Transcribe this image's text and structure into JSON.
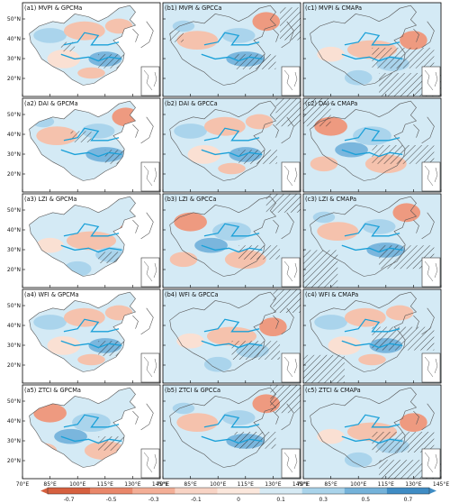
{
  "panels": [
    {
      "row": 0,
      "col": 0,
      "title": "(a1) MVPI & GPCMa",
      "domain": "china",
      "pattern": 1,
      "hatch": [
        [
          0.55,
          0.55,
          0.3,
          0.15
        ],
        [
          0.28,
          0.42,
          0.1,
          0.1
        ]
      ]
    },
    {
      "row": 0,
      "col": 1,
      "title": "(b1) MVPI & GPCCa",
      "domain": "full",
      "pattern": 2,
      "hatch": [
        [
          0.52,
          0.55,
          0.3,
          0.16
        ],
        [
          0.85,
          0.05,
          0.15,
          0.35
        ],
        [
          0.05,
          0.3,
          0.1,
          0.12
        ]
      ]
    },
    {
      "row": 0,
      "col": 2,
      "title": "(c1) MVPI & CMAPa",
      "domain": "full",
      "pattern": 3,
      "hatch": [
        [
          0.5,
          0.48,
          0.45,
          0.22
        ],
        [
          0.55,
          0.75,
          0.45,
          0.25
        ]
      ]
    },
    {
      "row": 1,
      "col": 0,
      "title": "(a2) DAI & GPCMa",
      "domain": "china",
      "pattern": 2,
      "hatch": [
        [
          0.6,
          0.55,
          0.25,
          0.15
        ],
        [
          0.35,
          0.35,
          0.15,
          0.12
        ]
      ]
    },
    {
      "row": 1,
      "col": 1,
      "title": "(b2) DAI & GPCCa",
      "domain": "full",
      "pattern": 1,
      "hatch": [
        [
          0.55,
          0.55,
          0.28,
          0.15
        ],
        [
          0.82,
          0.0,
          0.18,
          0.3
        ]
      ]
    },
    {
      "row": 1,
      "col": 2,
      "title": "(c2) DAI & CMAPa",
      "domain": "full",
      "pattern": 4,
      "hatch": [
        [
          0.5,
          0.5,
          0.45,
          0.2
        ],
        [
          0.0,
          0.0,
          0.2,
          0.3
        ]
      ]
    },
    {
      "row": 2,
      "col": 0,
      "title": "(a3) LZI & GPCMa",
      "domain": "china",
      "pattern": 3,
      "hatch": [
        [
          0.55,
          0.62,
          0.2,
          0.12
        ]
      ]
    },
    {
      "row": 2,
      "col": 1,
      "title": "(b3) LZI & GPCCa",
      "domain": "full",
      "pattern": 4,
      "hatch": [
        [
          0.55,
          0.55,
          0.3,
          0.15
        ],
        [
          0.75,
          0.0,
          0.25,
          0.2
        ]
      ]
    },
    {
      "row": 2,
      "col": 2,
      "title": "(c3) LZI & CMAPa",
      "domain": "full",
      "pattern": 2,
      "hatch": [
        [
          0.55,
          0.55,
          0.4,
          0.25
        ],
        [
          0.0,
          0.6,
          0.25,
          0.4
        ]
      ]
    },
    {
      "row": 3,
      "col": 0,
      "title": "(a4) WFI & GPCMa",
      "domain": "china",
      "pattern": 1,
      "hatch": [
        [
          0.55,
          0.55,
          0.28,
          0.16
        ]
      ]
    },
    {
      "row": 3,
      "col": 1,
      "title": "(b4) WFI & GPCCa",
      "domain": "full",
      "pattern": 3,
      "hatch": [
        [
          0.5,
          0.55,
          0.35,
          0.2
        ],
        [
          0.8,
          0.0,
          0.2,
          0.25
        ]
      ]
    },
    {
      "row": 3,
      "col": 2,
      "title": "(c4) WFI & CMAPa",
      "domain": "full",
      "pattern": 1,
      "hatch": [
        [
          0.5,
          0.4,
          0.45,
          0.25
        ],
        [
          0.0,
          0.7,
          0.3,
          0.3
        ]
      ]
    },
    {
      "row": 4,
      "col": 0,
      "title": "(a5) ZTCI & GPCMa",
      "domain": "china",
      "pattern": 4,
      "hatch": [
        [
          0.55,
          0.55,
          0.3,
          0.15
        ]
      ]
    },
    {
      "row": 4,
      "col": 1,
      "title": "(b5) ZTCI & GPCCa",
      "domain": "full",
      "pattern": 2,
      "hatch": [
        [
          0.52,
          0.5,
          0.3,
          0.18
        ],
        [
          0.78,
          0.0,
          0.22,
          0.3
        ]
      ]
    },
    {
      "row": 4,
      "col": 2,
      "title": "(c5) ZTCI & CMAPa",
      "domain": "full",
      "pattern": 3,
      "hatch": [
        [
          0.5,
          0.5,
          0.45,
          0.22
        ],
        [
          0.55,
          0.8,
          0.45,
          0.2
        ]
      ]
    }
  ],
  "lat_labels": [
    "50°N",
    "40°N",
    "30°N",
    "20°N"
  ],
  "lon_labels": [
    "70°E",
    "85°E",
    "100°E",
    "115°E",
    "130°E",
    "145°E"
  ],
  "colorbar": {
    "ticks": [
      "-0.7",
      "-0.5",
      "-0.3",
      "-0.1",
      "0",
      "0.1",
      "0.3",
      "0.5",
      "0.7"
    ],
    "colors": [
      "#d6603f",
      "#e9876a",
      "#f3ae96",
      "#f8d3c4",
      "#fbe7dc",
      "#d6eaf4",
      "#a9d3ea",
      "#74b2d9",
      "#3f8cc4"
    ]
  },
  "palette": {
    "neg_strong": "#ee9a80",
    "neg": "#f5c2ad",
    "neg_light": "#fae0d3",
    "pos_light": "#d4eaf5",
    "pos": "#aad4ec",
    "pos_strong": "#7ab6dd",
    "ocean": "#ffffff",
    "border": "#555555",
    "river": "#1aa0d8",
    "hatch": "#222222"
  }
}
